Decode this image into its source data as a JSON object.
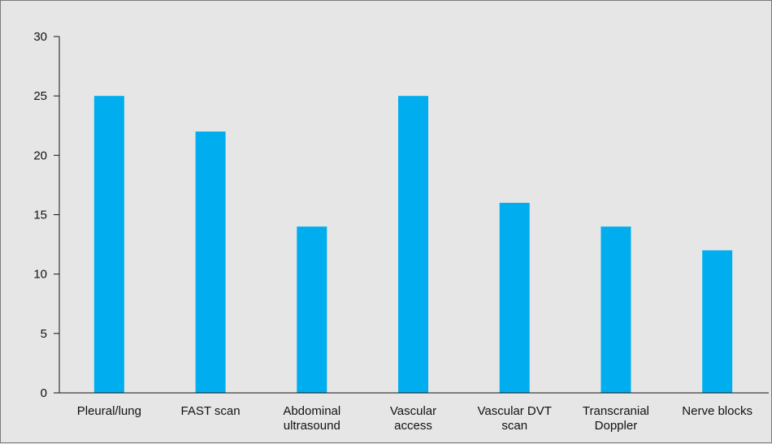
{
  "chart_data": {
    "type": "bar",
    "categories": [
      [
        "Pleural/lung"
      ],
      [
        "FAST scan"
      ],
      [
        "Abdominal",
        "ultrasound"
      ],
      [
        "Vascular",
        "access"
      ],
      [
        "Vascular DVT",
        "scan"
      ],
      [
        "Transcranial",
        "Doppler"
      ],
      [
        "Nerve blocks"
      ]
    ],
    "values": [
      25,
      22,
      14,
      25,
      16,
      14,
      12
    ],
    "yticks": [
      "0",
      "5",
      "10",
      "15",
      "20",
      "25",
      "30"
    ],
    "ylim": [
      0,
      30
    ],
    "title": "",
    "xlabel": "",
    "ylabel": "",
    "grid": false,
    "legend": "none",
    "colors": {
      "bar": "#00aeef",
      "axis": "#111111",
      "background": "#e6e6e6"
    }
  }
}
